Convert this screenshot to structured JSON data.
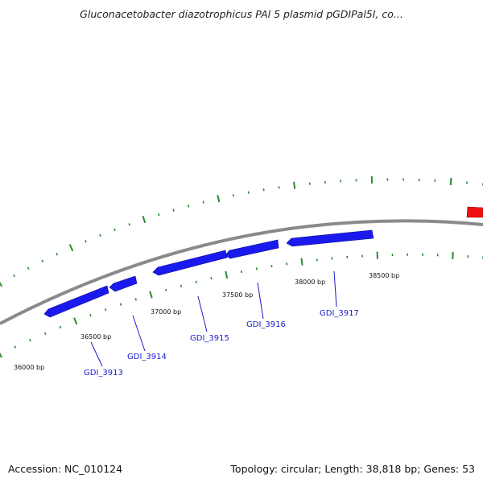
{
  "title": "Gluconacetobacter diazotrophicus PAl 5 plasmid pGDIPal5I, co...",
  "footer": {
    "accession": "Accession: NC_010124",
    "summary": "Topology: circular; Length: 38,818 bp; Genes: 53"
  },
  "colors": {
    "backbone": "#8a8a8a",
    "gene_forward": "#1a1aee",
    "gene_reverse": "#ee1111",
    "tick": "#2b8a2b",
    "label_line": "#1a1acc"
  },
  "position_labels": [
    "36000 bp",
    "36500 bp",
    "37000 bp",
    "37500 bp",
    "38000 bp",
    "38500 bp"
  ],
  "genes": [
    {
      "name": "GDI_3913"
    },
    {
      "name": "GDI_3914"
    },
    {
      "name": "GDI_3915"
    },
    {
      "name": "GDI_3916"
    },
    {
      "name": "GDI_3917"
    }
  ]
}
